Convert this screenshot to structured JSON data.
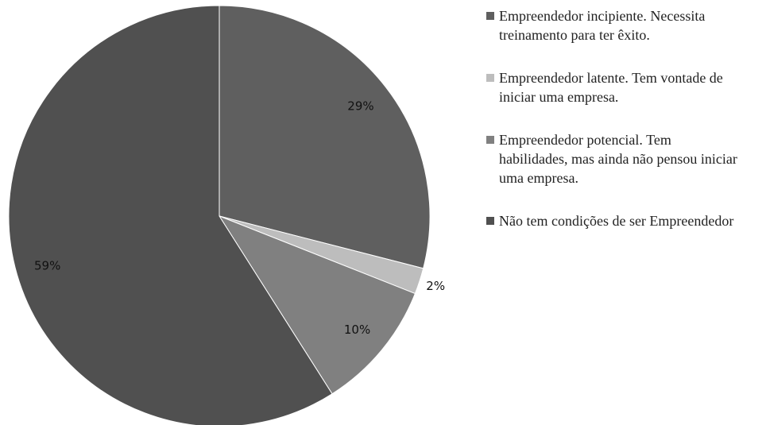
{
  "chart_data": {
    "type": "pie",
    "categories": [
      "Empreendedor incipiente. Necessita treinamento para ter êxito.",
      "Empreendedor latente.  Tem vontade de iniciar uma empresa.",
      "Empreendedor potencial. Tem habilidades, mas ainda não pensou iniciar uma empresa.",
      "Não tem condições de ser Empreendedor"
    ],
    "values": [
      29,
      2,
      10,
      59
    ],
    "value_labels": [
      "29%",
      "2%",
      "10%",
      "59%"
    ],
    "colors": [
      "#5f5f5f",
      "#bdbdbd",
      "#808080",
      "#505050"
    ],
    "legend": "right"
  }
}
